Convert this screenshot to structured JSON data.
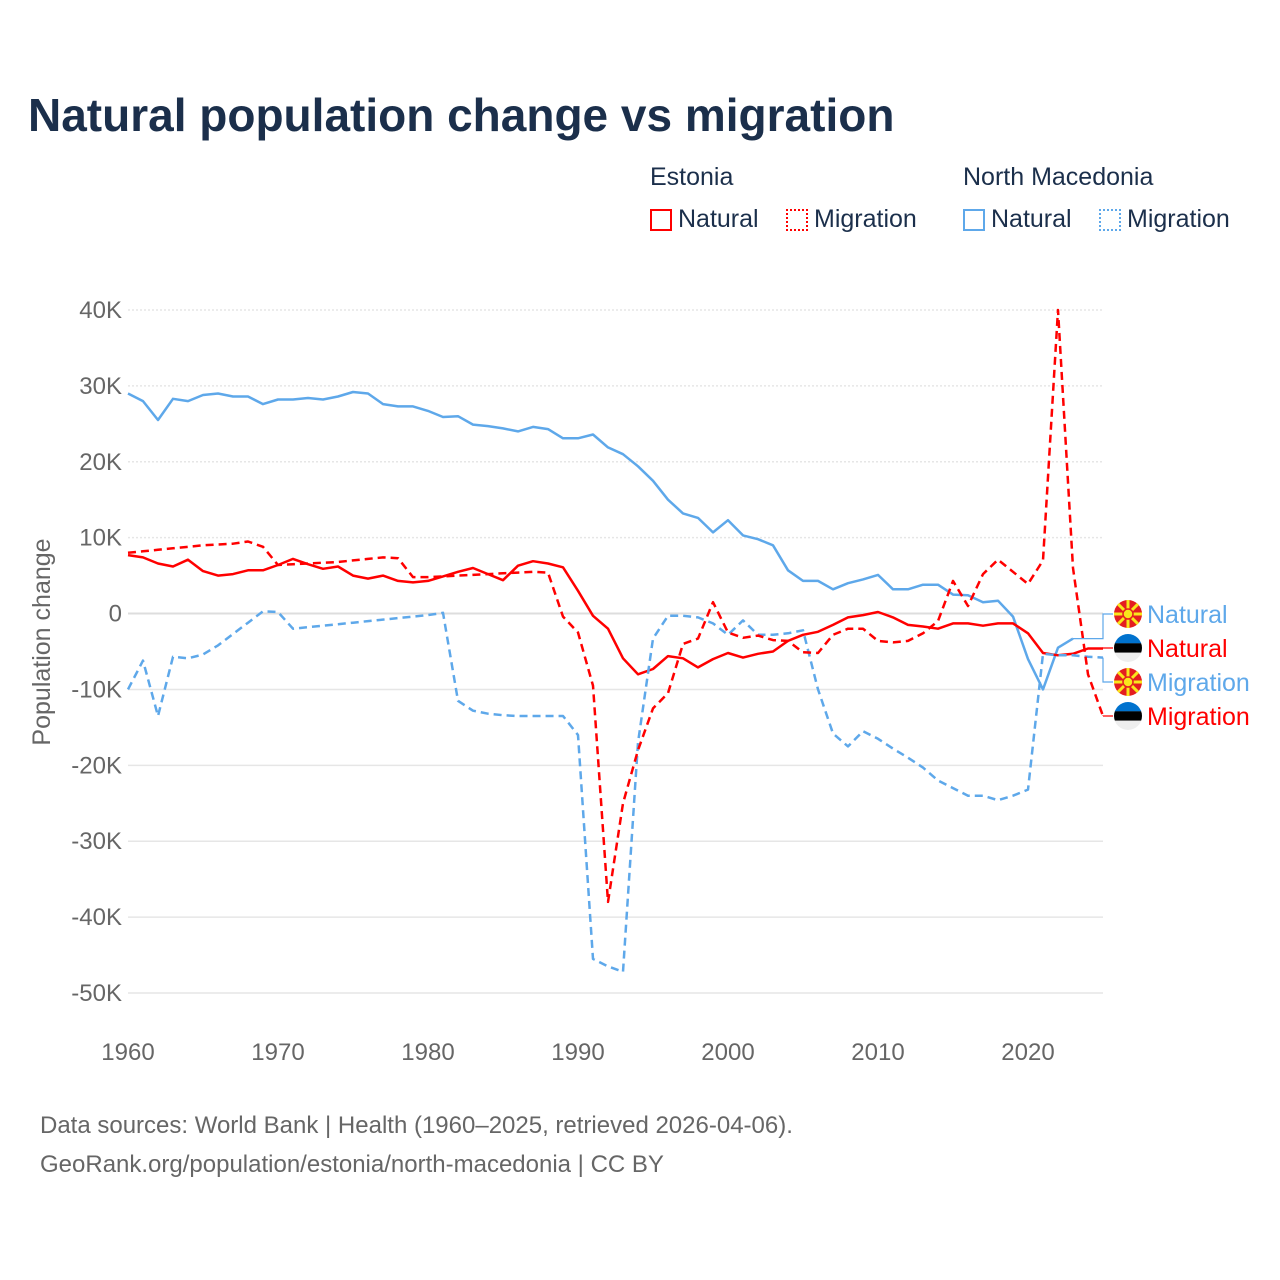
{
  "chart_data": {
    "type": "line",
    "title": "Natural population change vs migration",
    "ylabel": "Population change",
    "xlabel": "",
    "ylim": [
      -50000,
      40000
    ],
    "xlim": [
      1960,
      2025
    ],
    "grid": true,
    "x_ticks": [
      "1960",
      "1970",
      "1980",
      "1990",
      "2000",
      "2010",
      "2020"
    ],
    "y_ticks": [
      {
        "v": 40000,
        "label": "40K"
      },
      {
        "v": 30000,
        "label": "30K"
      },
      {
        "v": 20000,
        "label": "20K"
      },
      {
        "v": 10000,
        "label": "10K"
      },
      {
        "v": 0,
        "label": "0"
      },
      {
        "v": -10000,
        "label": "-10K"
      },
      {
        "v": -20000,
        "label": "-20K"
      },
      {
        "v": -30000,
        "label": "-30K"
      },
      {
        "v": -40000,
        "label": "-40K"
      },
      {
        "v": -50000,
        "label": "-50K"
      }
    ],
    "legend": {
      "placement": "top-right",
      "groups": [
        {
          "country": "Estonia",
          "items": [
            "Natural",
            "Migration"
          ]
        },
        {
          "country": "North Macedonia",
          "items": [
            "Natural",
            "Migration"
          ]
        }
      ]
    },
    "start_year": 1960,
    "series": [
      {
        "name": "North Macedonia Natural",
        "country": "North Macedonia",
        "kind": "Natural",
        "color": "#5ea8ea",
        "dashed": false,
        "end_label": "Natural",
        "values": [
          29000,
          28000,
          25500,
          28300,
          28000,
          28800,
          29000,
          28600,
          28600,
          27600,
          28200,
          28200,
          28400,
          28200,
          28600,
          29200,
          29000,
          27600,
          27300,
          27300,
          26700,
          25900,
          26000,
          24900,
          24700,
          24400,
          24000,
          24600,
          24300,
          23100,
          23100,
          23600,
          21900,
          21000,
          19400,
          17500,
          15000,
          13200,
          12600,
          10700,
          12300,
          10300,
          9800,
          9000,
          5700,
          4300,
          4300,
          3200,
          4000,
          4500,
          5100,
          3200,
          3200,
          3800,
          3800,
          2500,
          2400,
          1500,
          1700,
          -400,
          -6000,
          -10000,
          -4500,
          -3300
        ]
      },
      {
        "name": "Estonia Natural",
        "country": "Estonia",
        "kind": "Natural",
        "color": "#ff0000",
        "dashed": false,
        "end_label": "Natural",
        "values": [
          7700,
          7400,
          6600,
          6200,
          7100,
          5600,
          5000,
          5200,
          5700,
          5700,
          6400,
          7200,
          6500,
          5900,
          6200,
          5000,
          4600,
          5000,
          4300,
          4100,
          4300,
          4900,
          5500,
          6000,
          5200,
          4400,
          6300,
          6900,
          6600,
          6100,
          3000,
          -300,
          -2000,
          -5900,
          -8000,
          -7300,
          -5600,
          -5900,
          -7100,
          -6000,
          -5200,
          -5800,
          -5300,
          -5000,
          -3600,
          -2800,
          -2400,
          -1500,
          -500,
          -200,
          200,
          -500,
          -1500,
          -1700,
          -2000,
          -1300,
          -1300,
          -1600,
          -1300,
          -1300,
          -2600,
          -5200,
          -5500,
          -5300,
          -4600,
          -4600
        ]
      },
      {
        "name": "North Macedonia Migration",
        "country": "North Macedonia",
        "kind": "Migration",
        "color": "#5ea8ea",
        "dashed": true,
        "end_label": "Migration",
        "values": [
          -10000,
          -6200,
          -13500,
          -5700,
          -5900,
          -5400,
          -4200,
          -2700,
          -1200,
          300,
          200,
          -2000,
          -1800,
          -1600,
          -1400,
          -1200,
          -1000,
          -800,
          -600,
          -400,
          -200,
          100,
          -11500,
          -12800,
          -13200,
          -13400,
          -13500,
          -13500,
          -13500,
          -13500,
          -16000,
          -45500,
          -46500,
          -47200,
          -17000,
          -3300,
          -300,
          -300,
          -500,
          -1300,
          -2800,
          -900,
          -2800,
          -2800,
          -2600,
          -2200,
          -10000,
          -15800,
          -17500,
          -15500,
          -16500,
          -17800,
          -19000,
          -20300,
          -22000,
          -23000,
          -24000,
          -24000,
          -24600,
          -24000,
          -23200,
          -5300,
          -5500,
          -5500,
          -5700,
          -5800
        ]
      },
      {
        "name": "Estonia Migration",
        "country": "Estonia",
        "kind": "Migration",
        "color": "#ff0000",
        "dashed": true,
        "end_label": "Migration",
        "values": [
          8000,
          8200,
          8400,
          8600,
          8800,
          9000,
          9100,
          9200,
          9500,
          8800,
          6400,
          6500,
          6600,
          6700,
          6800,
          7000,
          7200,
          7400,
          7300,
          4800,
          4800,
          4900,
          5000,
          5100,
          5200,
          5300,
          5400,
          5500,
          5400,
          -400,
          -2500,
          -9500,
          -38000,
          -25000,
          -18000,
          -12500,
          -10500,
          -4000,
          -3300,
          1500,
          -2500,
          -3200,
          -2900,
          -3500,
          -3600,
          -5100,
          -5200,
          -2800,
          -2000,
          -2000,
          -3600,
          -3800,
          -3600,
          -2600,
          -1000,
          4300,
          1000,
          5200,
          7100,
          5500,
          3900,
          7000,
          40000,
          6000,
          -8000,
          -13500
        ]
      }
    ]
  },
  "legend": {
    "estonia": "Estonia",
    "north_macedonia": "North Macedonia",
    "natural": "Natural",
    "migration": "Migration"
  },
  "footer": {
    "line1": "Data sources: World Bank | Health (1960–2025, retrieved 2026-04-06).",
    "line2": "GeoRank.org/population/estonia/north-macedonia | CC BY"
  }
}
